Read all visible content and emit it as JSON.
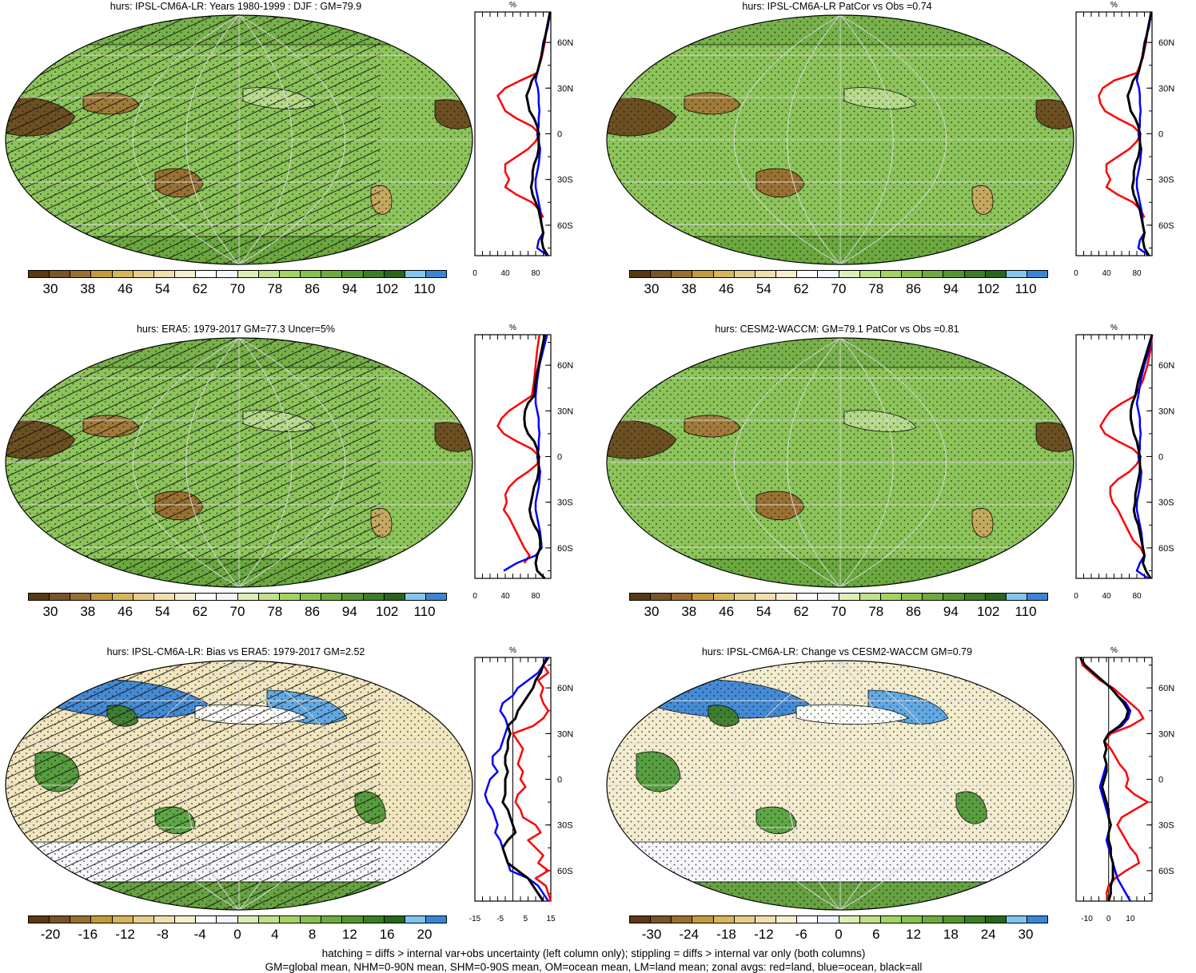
{
  "palettes": {
    "abs": [
      "#5a3a14",
      "#7a5424",
      "#9a6e30",
      "#c49a3c",
      "#d8b45c",
      "#e6cf8c",
      "#efe0ad",
      "#f6efcf",
      "#ffffff",
      "#f2f6ff",
      "#dcefb8",
      "#c0e08a",
      "#a4d264",
      "#88c04e",
      "#6eab3e",
      "#54952f",
      "#3c7e25",
      "#28661c",
      "#82c6f0",
      "#3a86d6"
    ],
    "bias": [
      "#5a3a14",
      "#7a5424",
      "#9a6e30",
      "#c49a3c",
      "#d8b45c",
      "#e6cf8c",
      "#efe0ad",
      "#f6efcf",
      "#ffffff",
      "#f2f6ff",
      "#dcefb8",
      "#c0e08a",
      "#a4d264",
      "#88c04e",
      "#6eab3e",
      "#54952f",
      "#3c7e25",
      "#28661c",
      "#82c6f0",
      "#3a86d6"
    ]
  },
  "panels": [
    {
      "title": "hurs: IPSL-CM6A-LR: Years 1980-1999 : DJF : GM=79.9",
      "cb_labels": [
        "30",
        "38",
        "46",
        "54",
        "62",
        "70",
        "78",
        "86",
        "94",
        "102",
        "110"
      ],
      "palette": "abs",
      "base_color": "#8cc45a",
      "hatch": true,
      "zonal_xticks": [
        "0",
        "40",
        "80"
      ],
      "zonal_xmin": 0,
      "zonal_xmax": 100,
      "zonal_zero_line": false,
      "zonal": {
        "lat": [
          80,
          70,
          60,
          50,
          40,
          35,
          30,
          25,
          20,
          15,
          10,
          5,
          0,
          -5,
          -10,
          -15,
          -20,
          -25,
          -30,
          -35,
          -40,
          -45,
          -50,
          -55,
          -60,
          -65,
          -70,
          -75,
          -80
        ],
        "red": [
          99,
          95,
          92,
          88,
          82,
          60,
          40,
          30,
          35,
          40,
          55,
          75,
          85,
          80,
          70,
          55,
          40,
          40,
          45,
          40,
          55,
          75,
          85,
          90,
          null,
          null,
          null,
          null,
          null
        ],
        "blue": [
          99,
          96,
          90,
          87,
          82,
          80,
          83,
          84,
          84,
          85,
          84,
          84,
          82,
          84,
          86,
          85,
          84,
          82,
          80,
          80,
          82,
          84,
          86,
          87,
          88,
          90,
          84,
          82,
          96
        ],
        "black": [
          99,
          95,
          91,
          87,
          82,
          75,
          72,
          68,
          70,
          72,
          78,
          82,
          84,
          84,
          84,
          82,
          78,
          76,
          76,
          74,
          76,
          80,
          84,
          86,
          88,
          90,
          88,
          90,
          96
        ]
      },
      "zonal_lat_labels": [
        "60N",
        "30N",
        "0",
        "30S",
        "60S"
      ],
      "zonal_unit": "%"
    },
    {
      "title": "hurs: IPSL-CM6A-LR PatCor vs Obs =0.74",
      "cb_labels": [
        "30",
        "38",
        "46",
        "54",
        "62",
        "70",
        "78",
        "86",
        "94",
        "102",
        "110"
      ],
      "palette": "abs",
      "base_color": "#8cc45a",
      "hatch": false,
      "zonal_xticks": [
        "0",
        "40",
        "80"
      ],
      "zonal_xmin": 0,
      "zonal_xmax": 100,
      "zonal_zero_line": false,
      "zonal": {
        "lat": [
          80,
          70,
          60,
          50,
          40,
          35,
          30,
          25,
          20,
          15,
          10,
          5,
          0,
          -5,
          -10,
          -15,
          -20,
          -25,
          -30,
          -35,
          -40,
          -45,
          -50,
          -55,
          -60,
          -65,
          -70,
          -75,
          -80
        ],
        "red": [
          99,
          95,
          92,
          88,
          80,
          50,
          35,
          30,
          32,
          38,
          55,
          75,
          85,
          80,
          70,
          55,
          40,
          40,
          45,
          40,
          55,
          75,
          85,
          90,
          null,
          null,
          null,
          null,
          null
        ],
        "blue": [
          99,
          96,
          90,
          87,
          82,
          80,
          83,
          84,
          84,
          85,
          84,
          84,
          82,
          84,
          86,
          85,
          84,
          82,
          80,
          80,
          82,
          84,
          86,
          87,
          88,
          90,
          84,
          82,
          96
        ],
        "black": [
          99,
          95,
          91,
          87,
          82,
          75,
          72,
          68,
          70,
          72,
          78,
          82,
          84,
          84,
          84,
          82,
          78,
          76,
          76,
          74,
          76,
          80,
          84,
          86,
          88,
          90,
          88,
          90,
          96
        ]
      },
      "zonal_lat_labels": [
        "60N",
        "30N",
        "0",
        "30S",
        "60S"
      ],
      "zonal_unit": "%"
    },
    {
      "title": "hurs: ERA5: 1979-2017 GM=77.3 Uncer=5%",
      "cb_labels": [
        "30",
        "38",
        "46",
        "54",
        "62",
        "70",
        "78",
        "86",
        "94",
        "102",
        "110"
      ],
      "palette": "abs",
      "base_color": "#8cc45a",
      "hatch": true,
      "zonal_xticks": [
        "0",
        "40",
        "80"
      ],
      "zonal_xmin": 0,
      "zonal_xmax": 100,
      "zonal_zero_line": false,
      "zonal": {
        "lat": [
          80,
          70,
          60,
          50,
          40,
          35,
          30,
          25,
          20,
          15,
          10,
          5,
          0,
          -5,
          -10,
          -15,
          -20,
          -25,
          -30,
          -35,
          -40,
          -45,
          -50,
          -55,
          -60,
          -65,
          -70,
          -75,
          -80
        ],
        "red": [
          85,
          82,
          80,
          78,
          75,
          60,
          45,
          35,
          30,
          38,
          55,
          75,
          85,
          82,
          70,
          55,
          45,
          40,
          42,
          38,
          45,
          50,
          55,
          60,
          65,
          72,
          65,
          null,
          null
        ],
        "blue": [
          95,
          90,
          85,
          82,
          80,
          80,
          82,
          84,
          84,
          85,
          84,
          84,
          82,
          84,
          86,
          85,
          84,
          82,
          80,
          80,
          82,
          84,
          86,
          87,
          88,
          80,
          55,
          38,
          null
        ],
        "black": [
          92,
          88,
          84,
          80,
          78,
          70,
          66,
          65,
          66,
          70,
          78,
          82,
          84,
          84,
          84,
          82,
          78,
          76,
          74,
          72,
          74,
          78,
          84,
          86,
          86,
          82,
          80,
          82,
          92
        ]
      },
      "zonal_lat_labels": [
        "60N",
        "30N",
        "0",
        "30S",
        "60S"
      ],
      "zonal_unit": "%"
    },
    {
      "title": "hurs: CESM2-WACCM: GM=79.1 PatCor vs Obs =0.81",
      "cb_labels": [
        "30",
        "38",
        "46",
        "54",
        "62",
        "70",
        "78",
        "86",
        "94",
        "102",
        "110"
      ],
      "palette": "abs",
      "base_color": "#8cc45a",
      "hatch": false,
      "zonal_xticks": [
        "0",
        "40",
        "80"
      ],
      "zonal_xmin": 0,
      "zonal_xmax": 100,
      "zonal_zero_line": false,
      "zonal": {
        "lat": [
          80,
          70,
          60,
          50,
          40,
          35,
          30,
          25,
          20,
          15,
          10,
          5,
          0,
          -5,
          -10,
          -15,
          -20,
          -25,
          -30,
          -35,
          -40,
          -45,
          -50,
          -55,
          -60,
          -65,
          -70,
          -75,
          -80
        ],
        "red": [
          100,
          98,
          94,
          88,
          78,
          60,
          45,
          38,
          32,
          38,
          55,
          75,
          85,
          80,
          70,
          55,
          45,
          45,
          48,
          55,
          60,
          65,
          70,
          75,
          85,
          90,
          null,
          null,
          null
        ],
        "blue": [
          100,
          96,
          90,
          85,
          82,
          80,
          82,
          84,
          84,
          85,
          84,
          84,
          82,
          84,
          86,
          85,
          84,
          82,
          80,
          80,
          82,
          84,
          86,
          87,
          88,
          90,
          84,
          80,
          95
        ],
        "black": [
          100,
          94,
          88,
          82,
          78,
          74,
          72,
          72,
          74,
          76,
          80,
          82,
          84,
          84,
          84,
          82,
          80,
          78,
          78,
          76,
          78,
          82,
          84,
          86,
          88,
          90,
          88,
          92,
          98
        ]
      },
      "zonal_lat_labels": [
        "60N",
        "30N",
        "0",
        "30S",
        "60S"
      ],
      "zonal_unit": "%"
    },
    {
      "title": "hurs: IPSL-CM6A-LR: Bias vs ERA5: 1979-2017 GM=2.52",
      "cb_labels": [
        "-20",
        "-16",
        "-12",
        "-8",
        "-4",
        "0",
        "4",
        "8",
        "12",
        "16",
        "20"
      ],
      "palette": "bias",
      "base_color": "#f1e6bd",
      "hatch": true,
      "zonal_xticks": [
        "-15",
        "-5",
        "5",
        "15"
      ],
      "zonal_xmin": -15,
      "zonal_xmax": 15,
      "zonal_zero_line": true,
      "zonal": {
        "lat": [
          80,
          75,
          70,
          65,
          60,
          55,
          50,
          45,
          40,
          35,
          30,
          25,
          20,
          15,
          10,
          5,
          0,
          -5,
          -10,
          -15,
          -20,
          -25,
          -30,
          -35,
          -40,
          -45,
          -50,
          -55,
          -60,
          -65,
          -70,
          -75,
          -80
        ],
        "red": [
          14,
          12,
          14,
          10,
          12,
          11,
          12,
          14,
          12,
          8,
          0,
          2,
          4,
          3,
          2,
          4,
          3,
          5,
          2,
          1,
          3,
          4,
          9,
          11,
          6,
          9,
          12,
          10,
          14,
          9,
          13,
          14,
          15
        ],
        "blue": [
          13,
          12,
          10,
          6,
          2,
          0,
          -4,
          -5,
          -3,
          -2,
          -3,
          -4,
          -5,
          -8,
          -8,
          -6,
          -9,
          -10,
          -11,
          -10,
          -8,
          -7,
          -6,
          -7,
          -5,
          -4,
          -3,
          -2,
          -1,
          6,
          10,
          12,
          14
        ],
        "black": [
          14,
          12,
          11,
          9,
          8,
          6,
          4,
          2,
          1,
          -2,
          -1,
          -2,
          -2,
          -3,
          -3,
          -2,
          -3,
          -3,
          -3,
          -4,
          -2,
          -1,
          0,
          1,
          -2,
          -4,
          -3,
          -2,
          2,
          6,
          8,
          10,
          12
        ]
      },
      "zonal_lat_labels": [
        "60N",
        "30N",
        "0",
        "30S",
        "60S"
      ],
      "zonal_unit": "%"
    },
    {
      "title": "hurs: IPSL-CM6A-LR: Change vs CESM2-WACCM GM=0.79",
      "cb_labels": [
        "-30",
        "-24",
        "-18",
        "-12",
        "-6",
        "0",
        "6",
        "12",
        "18",
        "24",
        "30"
      ],
      "palette": "bias",
      "base_color": "#f3eccf",
      "hatch": false,
      "zonal_xticks": [
        "-10",
        "0",
        "10"
      ],
      "zonal_xmin": -15,
      "zonal_xmax": 20,
      "zonal_zero_line": true,
      "zonal": {
        "lat": [
          80,
          75,
          70,
          65,
          60,
          55,
          50,
          45,
          40,
          35,
          30,
          25,
          20,
          15,
          10,
          5,
          0,
          -5,
          -10,
          -15,
          -20,
          -25,
          -30,
          -35,
          -40,
          -45,
          -50,
          -55,
          -60,
          -65,
          -70,
          -75,
          -80
        ],
        "red": [
          -13,
          -12,
          -8,
          -4,
          2,
          6,
          10,
          14,
          16,
          10,
          1,
          -2,
          1,
          3,
          5,
          8,
          9,
          8,
          12,
          18,
          12,
          6,
          4,
          6,
          8,
          10,
          13,
          14,
          8,
          3,
          0,
          -1,
          0
        ],
        "blue": [
          -13,
          -11,
          -7,
          -3,
          1,
          4,
          8,
          10,
          9,
          6,
          0,
          -2,
          -1,
          -2,
          -1,
          -2,
          -3,
          -4,
          -3,
          -2,
          -1,
          0,
          1,
          0,
          -1,
          0,
          1,
          2,
          3,
          4,
          6,
          8,
          10
        ],
        "black": [
          -13,
          -11,
          -7,
          -3,
          1,
          4,
          7,
          9,
          8,
          5,
          0,
          -2,
          -1,
          -2,
          -1,
          -1,
          -2,
          -3,
          -2,
          -1,
          0,
          0,
          1,
          0,
          0,
          1,
          1,
          2,
          2,
          2,
          1,
          1,
          0
        ]
      },
      "zonal_lat_labels": [
        "60N",
        "30N",
        "0",
        "30S",
        "60S"
      ],
      "zonal_unit": "%"
    }
  ],
  "footer": {
    "line1": "hatching = diffs > internal var+obs uncertainty (left column only); stippling = diffs > internal var only (both columns)",
    "line2": "GM=global mean, NHM=0-90N mean, SHM=0-90S mean, OM=ocean mean, LM=land mean; zonal avgs: red=land, blue=ocean, black=all"
  }
}
